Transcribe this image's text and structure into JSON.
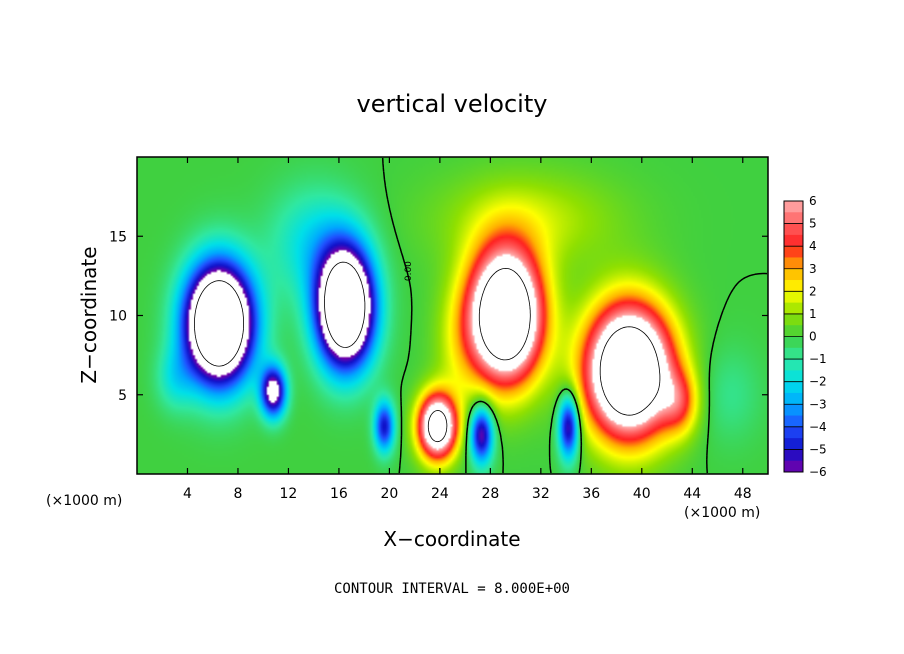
{
  "chart_data": {
    "type": "heatmap",
    "title": "vertical velocity",
    "xlabel": "X−coordinate",
    "ylabel": "Z−coordinate",
    "x_unit_left": "(×1000 m)",
    "x_unit_right": "(×1000 m)",
    "footer": "CONTOUR INTERVAL = 8.000E+00",
    "contour_label": "0.00",
    "xlim": [
      0,
      50
    ],
    "ylim": [
      0,
      20
    ],
    "x_ticks": [
      4,
      8,
      12,
      16,
      20,
      24,
      28,
      32,
      36,
      40,
      44,
      48
    ],
    "y_ticks": [
      5,
      10,
      15
    ],
    "colorbar": {
      "ticks": [
        6,
        5,
        4,
        3,
        2,
        1,
        0,
        -1,
        -2,
        -3,
        -4,
        -5,
        -6
      ],
      "tick_labels": [
        "6",
        "5",
        "4",
        "3",
        "2",
        "1",
        "0",
        "−1",
        "−2",
        "−3",
        "−4",
        "−5",
        "−6"
      ],
      "range": [
        -6,
        6
      ],
      "colors": [
        "#7a00a8",
        "#1010c8",
        "#2050ff",
        "#00a8ff",
        "#00e0e8",
        "#30e8a0",
        "#40d040",
        "#90e000",
        "#ffff00",
        "#ffb000",
        "#ff2020",
        "#ff6060",
        "#ffb0b0"
      ]
    },
    "features": [
      {
        "x": 6.5,
        "z": 9.5,
        "sx": 2.6,
        "sz": 3.6,
        "amp": -14
      },
      {
        "x": 10.8,
        "z": 5.2,
        "sx": 1.0,
        "sz": 1.6,
        "amp": -7
      },
      {
        "x": 16.5,
        "z": 10.5,
        "sx": 2.2,
        "sz": 3.6,
        "amp": -13
      },
      {
        "x": 19.6,
        "z": 3.0,
        "sx": 0.8,
        "sz": 1.6,
        "amp": -5
      },
      {
        "x": 14.0,
        "z": 14.5,
        "sx": 3.5,
        "sz": 3.5,
        "amp": -2
      },
      {
        "x": 3.0,
        "z": 6.0,
        "sx": 1.5,
        "sz": 2.0,
        "amp": -1.5
      },
      {
        "x": 23.8,
        "z": 3.0,
        "sx": 1.5,
        "sz": 2.0,
        "amp": 10
      },
      {
        "x": 27.3,
        "z": 2.5,
        "sx": 0.9,
        "sz": 1.8,
        "amp": -6
      },
      {
        "x": 29.2,
        "z": 10.0,
        "sx": 2.8,
        "sz": 4.0,
        "amp": 13
      },
      {
        "x": 34.2,
        "z": 3.0,
        "sx": 0.8,
        "sz": 2.0,
        "amp": -6
      },
      {
        "x": 39.0,
        "z": 6.5,
        "sx": 3.3,
        "sz": 4.0,
        "amp": 13
      },
      {
        "x": 43.0,
        "z": 4.5,
        "sx": 1.5,
        "sz": 2.0,
        "amp": 3
      },
      {
        "x": 31.0,
        "z": 16.0,
        "sx": 7.0,
        "sz": 3.0,
        "amp": 1.5
      },
      {
        "x": 47.0,
        "z": 5.0,
        "sx": 2.5,
        "sz": 3.0,
        "amp": -0.8
      },
      {
        "x": 25.5,
        "z": 8.0,
        "sx": 2.0,
        "sz": 4.0,
        "amp": 1.2
      }
    ]
  }
}
